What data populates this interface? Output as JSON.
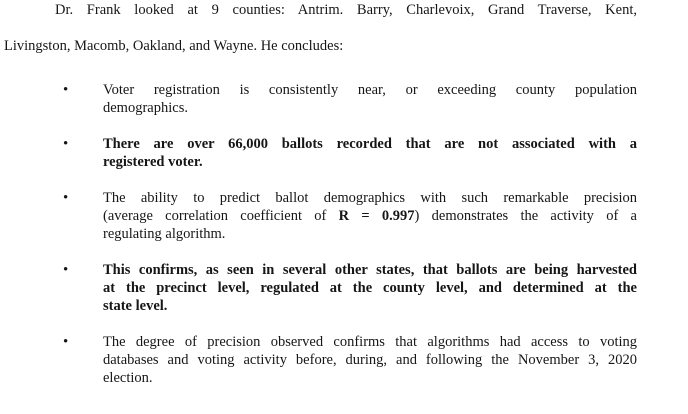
{
  "page": {
    "background_color": "#ffffff",
    "text_color": "#161616"
  },
  "intro": {
    "line1": "Dr. Frank looked at 9 counties: Antrim. Barry, Charlevoix, Grand Traverse, Kent,",
    "line2": "Livingston, Macomb, Oakland, and Wayne. He concludes:"
  },
  "bullet_marker": "•",
  "bullets": [
    {
      "style": "normal",
      "line1": "Voter registration is consistently near, or exceeding county population",
      "line2": "demographics."
    },
    {
      "style": "bold",
      "line1": "There are over 66,000 ballots recorded that are not associated with a",
      "line2": "registered voter."
    },
    {
      "style": "normal",
      "line1": "The ability to predict ballot demographics with such remarkable precision",
      "line2_pre": "(average correlation coefficient of ",
      "line2_bold": "R = 0.997",
      "line2_post": ") demonstrates the activity of a",
      "line3": "regulating algorithm."
    },
    {
      "style": "bold",
      "line1": "This confirms, as seen in several other states, that ballots are being harvested",
      "line2": "at the precinct level, regulated at the county level, and determined at the",
      "line3": "state level."
    },
    {
      "style": "normal",
      "line1": "The degree of precision observed confirms that algorithms had access to voting",
      "line2": "databases and voting activity before, during, and following the November 3, 2020",
      "line3": "election."
    }
  ]
}
